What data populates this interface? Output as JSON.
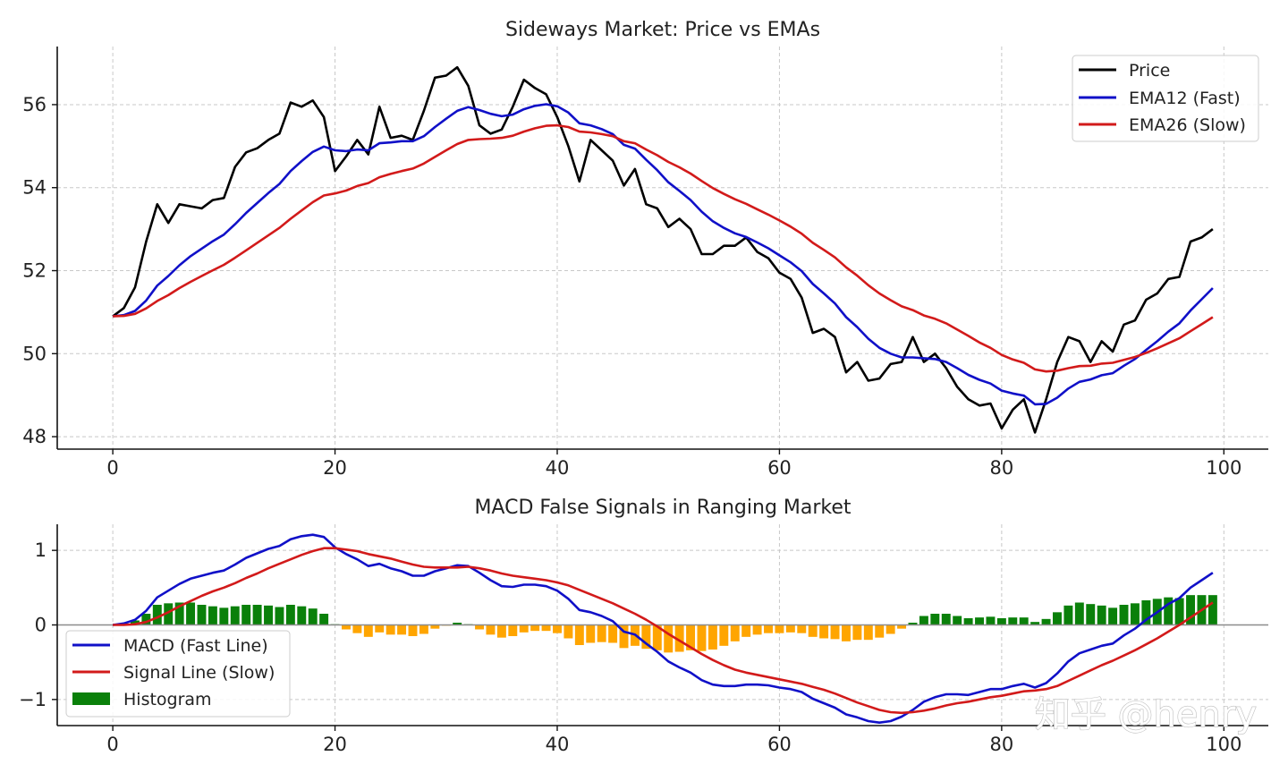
{
  "watermark": "知乎 @henry",
  "colors": {
    "price": "#000000",
    "ema12": "#1010c8",
    "ema26": "#d21a1a",
    "macd": "#1010c8",
    "signal": "#d21a1a",
    "hist_pos": "#0a800a",
    "hist_neg": "#ffa500",
    "zero_line": "#8c8c8c"
  },
  "chart_data": [
    {
      "type": "line",
      "title": "Sideways Market: Price vs EMAs",
      "xlabel": "",
      "ylabel": "",
      "xlim": [
        -5,
        104
      ],
      "ylim": [
        47.7,
        57.4
      ],
      "xticks": [
        0,
        20,
        40,
        60,
        80,
        100
      ],
      "yticks": [
        48,
        50,
        52,
        54,
        56
      ],
      "grid": true,
      "legend_position": "top-right",
      "x": [
        0,
        1,
        2,
        3,
        4,
        5,
        6,
        7,
        8,
        9,
        10,
        11,
        12,
        13,
        14,
        15,
        16,
        17,
        18,
        19,
        20,
        21,
        22,
        23,
        24,
        25,
        26,
        27,
        28,
        29,
        30,
        31,
        32,
        33,
        34,
        35,
        36,
        37,
        38,
        39,
        40,
        41,
        42,
        43,
        44,
        45,
        46,
        47,
        48,
        49,
        50,
        51,
        52,
        53,
        54,
        55,
        56,
        57,
        58,
        59,
        60,
        61,
        62,
        63,
        64,
        65,
        66,
        67,
        68,
        69,
        70,
        71,
        72,
        73,
        74,
        75,
        76,
        77,
        78,
        79,
        80,
        81,
        82,
        83,
        84,
        85,
        86,
        87,
        88,
        89,
        90,
        91,
        92,
        93,
        94,
        95,
        96,
        97,
        98,
        99
      ],
      "series": [
        {
          "name": "Price",
          "values": [
            50.9,
            51.1,
            51.6,
            52.7,
            53.6,
            53.15,
            53.6,
            53.55,
            53.5,
            53.7,
            53.75,
            54.5,
            54.85,
            54.95,
            55.15,
            55.3,
            56.05,
            55.95,
            56.1,
            55.7,
            54.4,
            54.75,
            55.15,
            54.8,
            55.95,
            55.2,
            55.25,
            55.15,
            55.85,
            56.65,
            56.7,
            56.9,
            56.45,
            55.5,
            55.3,
            55.4,
            55.95,
            56.6,
            56.4,
            56.25,
            55.7,
            55.0,
            54.15,
            55.15,
            54.9,
            54.65,
            54.05,
            54.45,
            53.6,
            53.5,
            53.05,
            53.25,
            53.0,
            52.4,
            52.4,
            52.6,
            52.6,
            52.8,
            52.45,
            52.3,
            51.95,
            51.8,
            51.35,
            50.5,
            50.6,
            50.4,
            49.55,
            49.8,
            49.35,
            49.4,
            49.75,
            49.8,
            50.4,
            49.8,
            50.0,
            49.65,
            49.2,
            48.9,
            48.75,
            48.8,
            48.2,
            48.65,
            48.9,
            48.1,
            48.9,
            49.8,
            50.4,
            50.3,
            49.8,
            50.3,
            50.05,
            50.7,
            50.8,
            51.3,
            51.45,
            51.8,
            51.85,
            52.7,
            52.8,
            53.0
          ]
        },
        {
          "name": "EMA12 (Fast)",
          "values": [
            50.9,
            50.93,
            51.03,
            51.28,
            51.64,
            51.87,
            52.13,
            52.35,
            52.53,
            52.71,
            52.87,
            53.12,
            53.39,
            53.63,
            53.87,
            54.09,
            54.4,
            54.64,
            54.86,
            54.99,
            54.9,
            54.88,
            54.92,
            54.9,
            55.07,
            55.09,
            55.12,
            55.12,
            55.24,
            55.46,
            55.66,
            55.85,
            55.94,
            55.87,
            55.78,
            55.72,
            55.76,
            55.89,
            55.97,
            56.01,
            55.96,
            55.81,
            55.55,
            55.5,
            55.41,
            55.29,
            55.03,
            54.94,
            54.67,
            54.42,
            54.13,
            53.92,
            53.7,
            53.42,
            53.19,
            53.03,
            52.9,
            52.81,
            52.68,
            52.54,
            52.37,
            52.2,
            51.99,
            51.68,
            51.45,
            51.21,
            50.88,
            50.64,
            50.36,
            50.14,
            50.0,
            49.91,
            49.91,
            49.89,
            49.87,
            49.8,
            49.65,
            49.49,
            49.37,
            49.28,
            49.11,
            49.04,
            48.99,
            48.78,
            48.79,
            48.94,
            49.16,
            49.32,
            49.38,
            49.48,
            49.53,
            49.71,
            49.87,
            50.09,
            50.3,
            50.53,
            50.73,
            51.04,
            51.31,
            51.58
          ]
        },
        {
          "name": "EMA26 (Slow)",
          "values": [
            50.9,
            50.91,
            50.96,
            51.09,
            51.27,
            51.41,
            51.58,
            51.73,
            51.87,
            52.01,
            52.14,
            52.31,
            52.49,
            52.67,
            52.85,
            53.03,
            53.25,
            53.45,
            53.65,
            53.81,
            53.86,
            53.93,
            54.04,
            54.11,
            54.25,
            54.33,
            54.4,
            54.46,
            54.58,
            54.74,
            54.9,
            55.05,
            55.15,
            55.17,
            55.18,
            55.2,
            55.25,
            55.35,
            55.43,
            55.49,
            55.5,
            55.46,
            55.35,
            55.33,
            55.29,
            55.24,
            55.12,
            55.07,
            54.92,
            54.78,
            54.62,
            54.49,
            54.34,
            54.16,
            53.99,
            53.85,
            53.72,
            53.61,
            53.48,
            53.35,
            53.21,
            53.06,
            52.89,
            52.67,
            52.5,
            52.32,
            52.08,
            51.88,
            51.65,
            51.45,
            51.29,
            51.14,
            51.05,
            50.92,
            50.84,
            50.73,
            50.58,
            50.43,
            50.27,
            50.14,
            49.97,
            49.86,
            49.78,
            49.62,
            49.57,
            49.59,
            49.65,
            49.7,
            49.71,
            49.76,
            49.78,
            49.85,
            49.92,
            50.02,
            50.13,
            50.25,
            50.37,
            50.54,
            50.71,
            50.88
          ]
        }
      ]
    },
    {
      "type": "line",
      "title": "MACD False Signals in Ranging Market",
      "xlabel": "",
      "ylabel": "",
      "xlim": [
        -5,
        104
      ],
      "ylim": [
        -1.35,
        1.35
      ],
      "xticks": [
        0,
        20,
        40,
        60,
        80,
        100
      ],
      "yticks": [
        -1,
        0,
        1
      ],
      "grid": true,
      "legend_position": "bottom-left",
      "x": [
        0,
        1,
        2,
        3,
        4,
        5,
        6,
        7,
        8,
        9,
        10,
        11,
        12,
        13,
        14,
        15,
        16,
        17,
        18,
        19,
        20,
        21,
        22,
        23,
        24,
        25,
        26,
        27,
        28,
        29,
        30,
        31,
        32,
        33,
        34,
        35,
        36,
        37,
        38,
        39,
        40,
        41,
        42,
        43,
        44,
        45,
        46,
        47,
        48,
        49,
        50,
        51,
        52,
        53,
        54,
        55,
        56,
        57,
        58,
        59,
        60,
        61,
        62,
        63,
        64,
        65,
        66,
        67,
        68,
        69,
        70,
        71,
        72,
        73,
        74,
        75,
        76,
        77,
        78,
        79,
        80,
        81,
        82,
        83,
        84,
        85,
        86,
        87,
        88,
        89,
        90,
        91,
        92,
        93,
        94,
        95,
        96,
        97,
        98,
        99
      ],
      "series": [
        {
          "name": "MACD (Fast Line)",
          "values": [
            0.0,
            0.02,
            0.07,
            0.19,
            0.37,
            0.46,
            0.55,
            0.62,
            0.66,
            0.7,
            0.73,
            0.81,
            0.9,
            0.96,
            1.02,
            1.06,
            1.15,
            1.19,
            1.21,
            1.18,
            1.04,
            0.95,
            0.88,
            0.79,
            0.82,
            0.76,
            0.72,
            0.66,
            0.66,
            0.72,
            0.76,
            0.8,
            0.79,
            0.7,
            0.6,
            0.52,
            0.51,
            0.54,
            0.54,
            0.52,
            0.46,
            0.35,
            0.2,
            0.17,
            0.12,
            0.05,
            -0.09,
            -0.13,
            -0.25,
            -0.36,
            -0.49,
            -0.57,
            -0.64,
            -0.74,
            -0.8,
            -0.82,
            -0.82,
            -0.8,
            -0.8,
            -0.81,
            -0.84,
            -0.86,
            -0.9,
            -0.99,
            -1.05,
            -1.11,
            -1.2,
            -1.24,
            -1.29,
            -1.31,
            -1.29,
            -1.23,
            -1.14,
            -1.03,
            -0.97,
            -0.93,
            -0.93,
            -0.94,
            -0.9,
            -0.86,
            -0.86,
            -0.82,
            -0.79,
            -0.84,
            -0.78,
            -0.65,
            -0.49,
            -0.38,
            -0.33,
            -0.28,
            -0.25,
            -0.14,
            -0.05,
            0.07,
            0.17,
            0.28,
            0.36,
            0.5,
            0.6,
            0.7
          ]
        },
        {
          "name": "Signal Line (Slow)",
          "values": [
            0.0,
            0.0,
            0.01,
            0.04,
            0.1,
            0.17,
            0.25,
            0.32,
            0.39,
            0.45,
            0.5,
            0.56,
            0.63,
            0.69,
            0.76,
            0.82,
            0.88,
            0.94,
            0.99,
            1.03,
            1.03,
            1.01,
            0.99,
            0.95,
            0.92,
            0.89,
            0.85,
            0.81,
            0.78,
            0.77,
            0.77,
            0.77,
            0.78,
            0.76,
            0.73,
            0.69,
            0.66,
            0.64,
            0.62,
            0.6,
            0.57,
            0.53,
            0.47,
            0.41,
            0.35,
            0.29,
            0.22,
            0.15,
            0.07,
            -0.02,
            -0.12,
            -0.21,
            -0.3,
            -0.39,
            -0.47,
            -0.54,
            -0.6,
            -0.64,
            -0.67,
            -0.7,
            -0.73,
            -0.76,
            -0.79,
            -0.83,
            -0.87,
            -0.92,
            -0.98,
            -1.04,
            -1.09,
            -1.14,
            -1.17,
            -1.18,
            -1.17,
            -1.15,
            -1.12,
            -1.08,
            -1.05,
            -1.03,
            -1.0,
            -0.97,
            -0.95,
            -0.92,
            -0.89,
            -0.88,
            -0.86,
            -0.82,
            -0.75,
            -0.68,
            -0.61,
            -0.54,
            -0.48,
            -0.41,
            -0.34,
            -0.26,
            -0.18,
            -0.09,
            -0.0,
            0.1,
            0.2,
            0.3
          ]
        },
        {
          "name": "Histogram",
          "values": [
            0.0,
            0.02,
            0.06,
            0.15,
            0.27,
            0.29,
            0.3,
            0.3,
            0.27,
            0.25,
            0.23,
            0.25,
            0.27,
            0.27,
            0.26,
            0.24,
            0.27,
            0.25,
            0.22,
            0.15,
            0.01,
            -0.06,
            -0.11,
            -0.16,
            -0.1,
            -0.13,
            -0.13,
            -0.15,
            -0.12,
            -0.05,
            -0.01,
            0.03,
            0.01,
            -0.06,
            -0.13,
            -0.17,
            -0.15,
            -0.1,
            -0.08,
            -0.08,
            -0.11,
            -0.18,
            -0.27,
            -0.24,
            -0.23,
            -0.24,
            -0.31,
            -0.28,
            -0.32,
            -0.34,
            -0.37,
            -0.36,
            -0.34,
            -0.35,
            -0.33,
            -0.28,
            -0.22,
            -0.16,
            -0.13,
            -0.11,
            -0.11,
            -0.1,
            -0.11,
            -0.16,
            -0.18,
            -0.19,
            -0.22,
            -0.2,
            -0.2,
            -0.17,
            -0.12,
            -0.05,
            0.03,
            0.12,
            0.15,
            0.15,
            0.12,
            0.09,
            0.1,
            0.11,
            0.09,
            0.1,
            0.1,
            0.04,
            0.08,
            0.17,
            0.26,
            0.3,
            0.28,
            0.26,
            0.23,
            0.27,
            0.29,
            0.33,
            0.35,
            0.37,
            0.36,
            0.4,
            0.4,
            0.4
          ]
        }
      ]
    }
  ]
}
